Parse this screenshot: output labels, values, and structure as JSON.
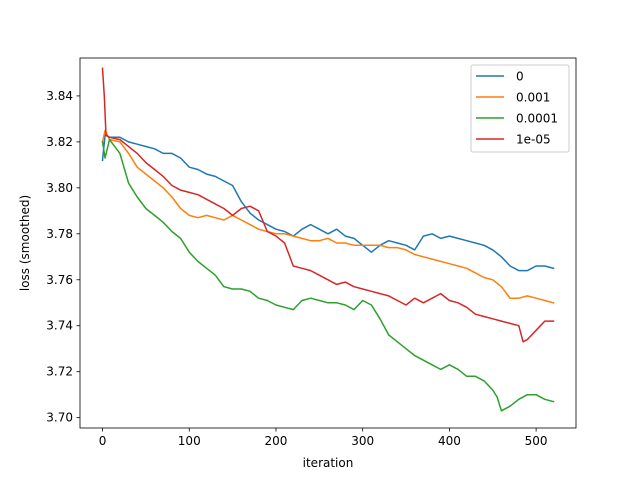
{
  "chart_data": {
    "type": "line",
    "title": "",
    "xlabel": "iteration",
    "ylabel": "loss (smoothed)",
    "xlim": [
      -26,
      546
    ],
    "ylim": [
      3.6955,
      3.8565
    ],
    "xticks": [
      0,
      100,
      200,
      300,
      400,
      500
    ],
    "xtick_labels": [
      "0",
      "100",
      "200",
      "300",
      "400",
      "500"
    ],
    "yticks": [
      3.7,
      3.72,
      3.74,
      3.76,
      3.78,
      3.8,
      3.82,
      3.84
    ],
    "ytick_labels": [
      "3.70",
      "3.72",
      "3.74",
      "3.76",
      "3.78",
      "3.80",
      "3.82",
      "3.84"
    ],
    "grid": false,
    "legend_position": "top-right",
    "series": [
      {
        "name": "0",
        "color": "#1f77b4",
        "x": [
          0,
          3,
          8,
          20,
          30,
          40,
          50,
          60,
          70,
          80,
          90,
          100,
          110,
          120,
          130,
          140,
          150,
          160,
          170,
          180,
          190,
          200,
          210,
          220,
          230,
          240,
          250,
          260,
          270,
          280,
          290,
          300,
          310,
          320,
          330,
          340,
          350,
          360,
          370,
          380,
          390,
          400,
          410,
          420,
          430,
          440,
          450,
          460,
          470,
          480,
          490,
          500,
          510,
          520
        ],
        "y": [
          3.812,
          3.823,
          3.822,
          3.822,
          3.82,
          3.819,
          3.818,
          3.817,
          3.815,
          3.815,
          3.813,
          3.809,
          3.808,
          3.806,
          3.805,
          3.803,
          3.801,
          3.794,
          3.789,
          3.786,
          3.784,
          3.782,
          3.781,
          3.779,
          3.782,
          3.784,
          3.782,
          3.78,
          3.782,
          3.779,
          3.778,
          3.775,
          3.772,
          3.775,
          3.777,
          3.776,
          3.775,
          3.773,
          3.779,
          3.78,
          3.778,
          3.779,
          3.778,
          3.777,
          3.776,
          3.775,
          3.773,
          3.77,
          3.766,
          3.764,
          3.764,
          3.766,
          3.766,
          3.765
        ]
      },
      {
        "name": "0.001",
        "color": "#ff7f0e",
        "x": [
          0,
          3,
          8,
          20,
          30,
          40,
          50,
          60,
          70,
          80,
          90,
          100,
          110,
          120,
          130,
          140,
          150,
          160,
          170,
          180,
          190,
          200,
          210,
          220,
          230,
          240,
          250,
          260,
          270,
          280,
          290,
          300,
          310,
          320,
          330,
          340,
          350,
          360,
          370,
          380,
          390,
          400,
          410,
          420,
          430,
          440,
          450,
          460,
          470,
          480,
          490,
          500,
          510,
          520
        ],
        "y": [
          3.82,
          3.825,
          3.821,
          3.82,
          3.815,
          3.809,
          3.806,
          3.803,
          3.8,
          3.796,
          3.791,
          3.788,
          3.787,
          3.788,
          3.787,
          3.786,
          3.788,
          3.786,
          3.784,
          3.782,
          3.781,
          3.78,
          3.78,
          3.779,
          3.778,
          3.777,
          3.777,
          3.778,
          3.776,
          3.776,
          3.775,
          3.775,
          3.775,
          3.775,
          3.774,
          3.774,
          3.773,
          3.771,
          3.77,
          3.769,
          3.768,
          3.767,
          3.766,
          3.765,
          3.763,
          3.761,
          3.76,
          3.757,
          3.752,
          3.752,
          3.753,
          3.752,
          3.751,
          3.75
        ]
      },
      {
        "name": "0.0001",
        "color": "#2ca02c",
        "x": [
          0,
          3,
          8,
          20,
          30,
          40,
          50,
          60,
          70,
          80,
          90,
          100,
          110,
          120,
          130,
          140,
          150,
          160,
          170,
          180,
          190,
          200,
          210,
          220,
          230,
          240,
          250,
          260,
          270,
          280,
          290,
          300,
          310,
          320,
          330,
          340,
          350,
          360,
          370,
          380,
          390,
          400,
          410,
          420,
          430,
          440,
          450,
          455,
          460,
          470,
          480,
          490,
          500,
          510,
          520
        ],
        "y": [
          3.82,
          3.813,
          3.821,
          3.815,
          3.802,
          3.796,
          3.791,
          3.788,
          3.785,
          3.781,
          3.778,
          3.772,
          3.768,
          3.765,
          3.762,
          3.757,
          3.756,
          3.756,
          3.755,
          3.752,
          3.751,
          3.749,
          3.748,
          3.747,
          3.751,
          3.752,
          3.751,
          3.75,
          3.75,
          3.749,
          3.747,
          3.751,
          3.749,
          3.743,
          3.736,
          3.733,
          3.73,
          3.727,
          3.725,
          3.723,
          3.721,
          3.723,
          3.721,
          3.718,
          3.718,
          3.716,
          3.712,
          3.709,
          3.703,
          3.705,
          3.708,
          3.71,
          3.71,
          3.708,
          3.707
        ]
      },
      {
        "name": "1e-05",
        "color": "#d62728",
        "x": [
          0,
          2,
          4,
          8,
          20,
          30,
          40,
          50,
          60,
          70,
          80,
          90,
          100,
          110,
          120,
          130,
          140,
          150,
          160,
          170,
          180,
          190,
          200,
          210,
          220,
          230,
          240,
          250,
          260,
          270,
          280,
          290,
          300,
          310,
          320,
          330,
          340,
          350,
          360,
          370,
          380,
          390,
          400,
          410,
          420,
          430,
          440,
          450,
          460,
          470,
          480,
          485,
          490,
          500,
          510,
          520
        ],
        "y": [
          3.852,
          3.84,
          3.823,
          3.822,
          3.821,
          3.818,
          3.815,
          3.811,
          3.808,
          3.805,
          3.801,
          3.799,
          3.798,
          3.797,
          3.795,
          3.793,
          3.791,
          3.788,
          3.791,
          3.792,
          3.79,
          3.781,
          3.779,
          3.776,
          3.766,
          3.765,
          3.764,
          3.762,
          3.76,
          3.758,
          3.759,
          3.757,
          3.756,
          3.755,
          3.754,
          3.753,
          3.751,
          3.749,
          3.752,
          3.75,
          3.752,
          3.754,
          3.751,
          3.75,
          3.748,
          3.745,
          3.744,
          3.743,
          3.742,
          3.741,
          3.74,
          3.733,
          3.734,
          3.738,
          3.742,
          3.742
        ]
      }
    ]
  }
}
